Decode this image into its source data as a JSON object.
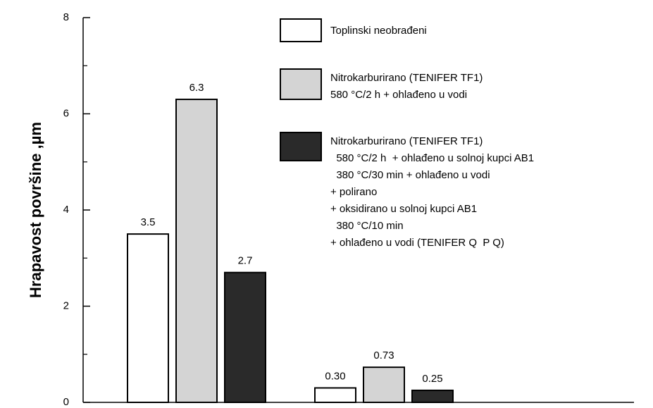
{
  "chart_data": {
    "type": "bar",
    "y_label": "Hrapavost površine ,µm",
    "categories": [
      null,
      null
    ],
    "series": [
      {
        "name": "Toplinski neobrađeni",
        "color": "#ffffff",
        "values": [
          3.5,
          0.3
        ],
        "value_labels": [
          "3.5",
          "0.30"
        ]
      },
      {
        "name": "Nitrokarburirano (TENIFER TF1)\n580 °C/2 h + ohlađeno u vodi",
        "color": "#d4d4d4",
        "values": [
          6.3,
          0.73
        ],
        "value_labels": [
          "6.3",
          "0.73"
        ]
      },
      {
        "name": "Nitrokarburirano (TENIFER TF1)\n  580 °C/2 h  + ohlađeno u solnoj kupci AB1\n  380 °C/30 min + ohlađeno u vodi\n+ polirano\n+ oksidirano u solnoj kupci AB1\n  380 °C/10 min\n+ ohlađeno u vodi (TENIFER Q  P Q)",
        "color": "#2a2a2a",
        "values": [
          2.7,
          0.25
        ],
        "value_labels": [
          "2.7",
          "0.25"
        ]
      }
    ],
    "ylim": [
      0,
      8
    ],
    "yticks": [
      0,
      2,
      4,
      6,
      8
    ],
    "minor_yticks": [
      1,
      3,
      5,
      7
    ],
    "legend": "top-right"
  }
}
